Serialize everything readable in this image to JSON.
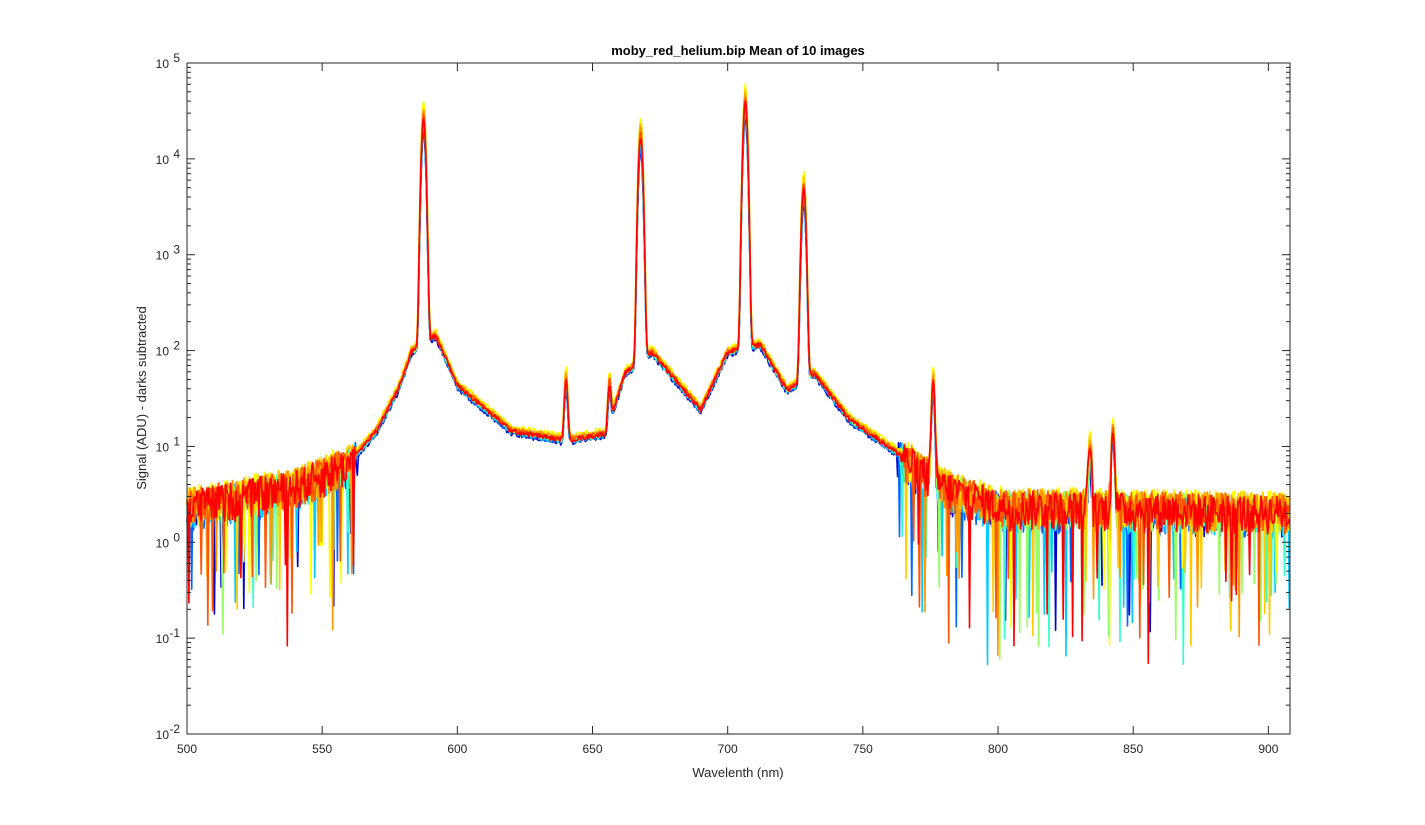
{
  "chart_data": {
    "type": "line",
    "title": "moby_red_helium.bip  Mean of 10 images",
    "xlabel": "Wavelenth (nm)",
    "ylabel": "Signal (ADU) - darks subtracted",
    "xlim": [
      500,
      908
    ],
    "ylim": [
      0.01,
      100000
    ],
    "yscale": "log",
    "grid": false,
    "xticks": [
      500,
      550,
      600,
      650,
      700,
      750,
      800,
      850,
      900
    ],
    "xtick_labels": [
      "500",
      "550",
      "600",
      "650",
      "700",
      "750",
      "800",
      "850",
      "900"
    ],
    "yticks": [
      0.01,
      0.1,
      1,
      10,
      100,
      1000,
      10000,
      100000
    ],
    "ytick_labels": [
      {
        "base": "10",
        "exp": "-2"
      },
      {
        "base": "10",
        "exp": "-1"
      },
      {
        "base": "10",
        "exp": "0"
      },
      {
        "base": "10",
        "exp": "1"
      },
      {
        "base": "10",
        "exp": "2"
      },
      {
        "base": "10",
        "exp": "3"
      },
      {
        "base": "10",
        "exp": "4"
      },
      {
        "base": "10",
        "exp": "5"
      }
    ],
    "series_count": 10,
    "series_colors": [
      "#0000cc",
      "#0066ff",
      "#00ccff",
      "#33ffcc",
      "#99ff66",
      "#ffff00",
      "#ffcc00",
      "#ff9900",
      "#ff5500",
      "#ff0000"
    ],
    "series_scales": [
      0.6,
      0.68,
      0.75,
      0.82,
      0.9,
      1.3,
      1.15,
      1.05,
      0.95,
      0.85
    ],
    "peaks": [
      {
        "x": 587.5,
        "y": 30000
      },
      {
        "x": 640.2,
        "y": 45
      },
      {
        "x": 656.3,
        "y": 33
      },
      {
        "x": 667.8,
        "y": 20000
      },
      {
        "x": 706.5,
        "y": 45000
      },
      {
        "x": 728.1,
        "y": 5500
      },
      {
        "x": 776.0,
        "y": 50
      },
      {
        "x": 834.0,
        "y": 9
      },
      {
        "x": 842.5,
        "y": 14
      }
    ],
    "continuum": [
      {
        "x": 500,
        "y": 2.5
      },
      {
        "x": 540,
        "y": 4
      },
      {
        "x": 560,
        "y": 7
      },
      {
        "x": 570,
        "y": 15
      },
      {
        "x": 578,
        "y": 40
      },
      {
        "x": 583,
        "y": 100
      },
      {
        "x": 592,
        "y": 150
      },
      {
        "x": 600,
        "y": 45
      },
      {
        "x": 620,
        "y": 15
      },
      {
        "x": 640,
        "y": 12
      },
      {
        "x": 655,
        "y": 14
      },
      {
        "x": 662,
        "y": 60
      },
      {
        "x": 672,
        "y": 100
      },
      {
        "x": 690,
        "y": 25
      },
      {
        "x": 700,
        "y": 100
      },
      {
        "x": 712,
        "y": 120
      },
      {
        "x": 722,
        "y": 40
      },
      {
        "x": 732,
        "y": 60
      },
      {
        "x": 745,
        "y": 20
      },
      {
        "x": 765,
        "y": 8
      },
      {
        "x": 780,
        "y": 4
      },
      {
        "x": 800,
        "y": 2.5
      },
      {
        "x": 908,
        "y": 2.2
      }
    ]
  }
}
